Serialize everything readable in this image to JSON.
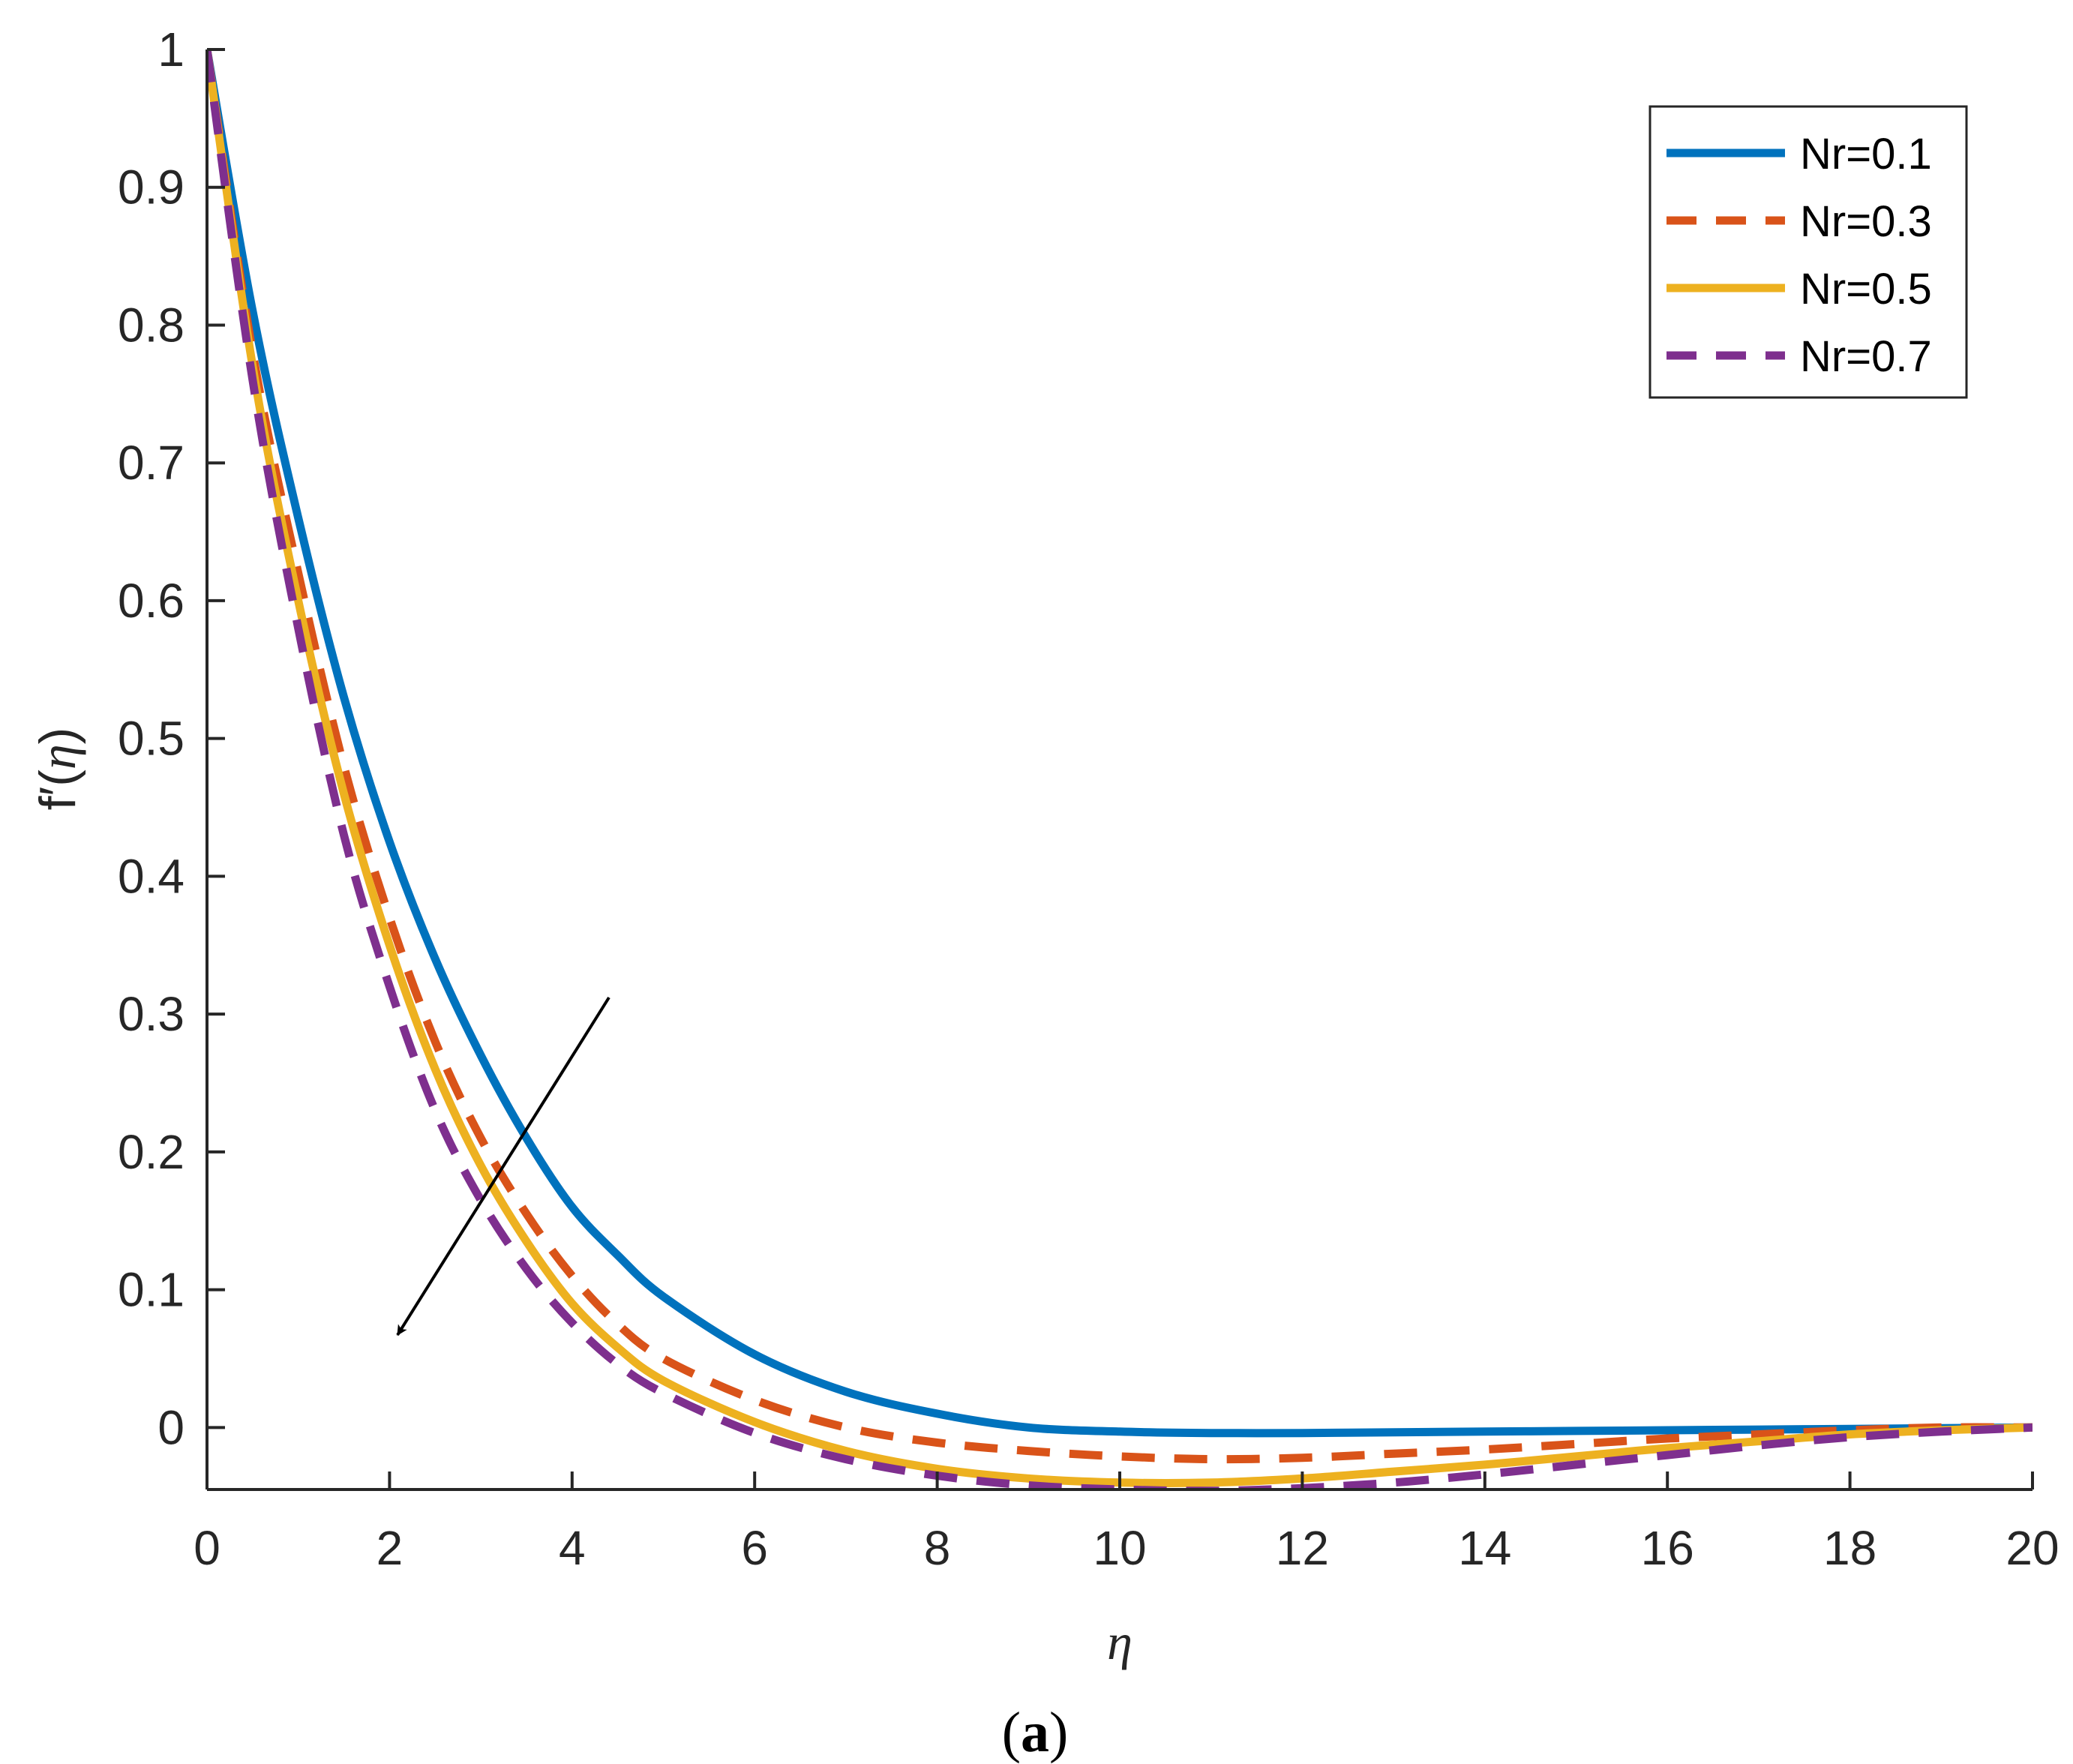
{
  "chart_data": {
    "type": "line",
    "title": "",
    "xlabel": "η",
    "ylabel_prefix": "f′(",
    "ylabel_var": "η",
    "ylabel_suffix": ")",
    "caption_open": "(",
    "caption_letter": "a",
    "caption_close": ")",
    "xlim": [
      0,
      20
    ],
    "ylim": [
      -0.045,
      1
    ],
    "xticks": [
      0,
      2,
      4,
      6,
      8,
      10,
      12,
      14,
      16,
      18,
      20
    ],
    "yticks": [
      0,
      0.1,
      0.2,
      0.3,
      0.4,
      0.5,
      0.6,
      0.7,
      0.8,
      0.9,
      1
    ],
    "ytick_labels": [
      "0",
      "0.1",
      "0.2",
      "0.3",
      "0.4",
      "0.5",
      "0.6",
      "0.7",
      "0.8",
      "0.9",
      "1"
    ],
    "xtick_labels": [
      "0",
      "2",
      "4",
      "6",
      "8",
      "10",
      "12",
      "14",
      "16",
      "18",
      "20"
    ],
    "grid": false,
    "legend_position": "top-right",
    "annotation": {
      "type": "arrow",
      "from": [
        4.4,
        0.31
      ],
      "to": [
        2.0,
        0.06
      ],
      "meaning": "increasing Nr"
    },
    "series": [
      {
        "name": "Nr=0.1",
        "color": "#0072BD",
        "style": "solid",
        "x": [
          0,
          0.5,
          1,
          1.5,
          2,
          2.5,
          3,
          3.5,
          4,
          4.5,
          5,
          6,
          7,
          8,
          9,
          10,
          11,
          12,
          13,
          14,
          15,
          16,
          17,
          18,
          19,
          20
        ],
        "y": [
          1,
          0.81,
          0.66,
          0.53,
          0.425,
          0.34,
          0.27,
          0.21,
          0.16,
          0.125,
          0.095,
          0.053,
          0.026,
          0.01,
          0.0,
          -0.003,
          -0.004,
          -0.004,
          -0.0035,
          -0.003,
          -0.0025,
          -0.002,
          -0.0015,
          -0.001,
          -0.0005,
          0
        ]
      },
      {
        "name": "Nr=0.3",
        "color": "#D95319",
        "style": "dashed",
        "x": [
          0,
          0.5,
          1,
          1.5,
          2,
          2.5,
          3,
          3.5,
          4,
          4.5,
          5,
          6,
          7,
          8,
          9,
          10,
          11,
          12,
          13,
          14,
          15,
          16,
          17,
          18,
          19,
          20
        ],
        "y": [
          1,
          0.78,
          0.62,
          0.48,
          0.37,
          0.28,
          0.21,
          0.155,
          0.11,
          0.075,
          0.05,
          0.02,
          0.0,
          -0.011,
          -0.017,
          -0.021,
          -0.023,
          -0.022,
          -0.019,
          -0.016,
          -0.012,
          -0.008,
          -0.005,
          -0.002,
          0.0,
          0
        ]
      },
      {
        "name": "Nr=0.5",
        "color": "#EDB120",
        "style": "solid",
        "x": [
          0,
          0.5,
          1,
          1.5,
          2,
          2.5,
          3,
          3.5,
          4,
          4.5,
          5,
          6,
          7,
          8,
          9,
          10,
          11,
          12,
          13,
          14,
          15,
          16,
          17,
          18,
          19,
          20
        ],
        "y": [
          1,
          0.77,
          0.6,
          0.46,
          0.35,
          0.26,
          0.19,
          0.135,
          0.09,
          0.058,
          0.034,
          0.004,
          -0.017,
          -0.03,
          -0.037,
          -0.04,
          -0.04,
          -0.037,
          -0.032,
          -0.027,
          -0.021,
          -0.015,
          -0.01,
          -0.005,
          -0.002,
          0
        ]
      },
      {
        "name": "Nr=0.7",
        "color": "#7E2F8E",
        "style": "dashed",
        "x": [
          0,
          0.5,
          1,
          1.5,
          2,
          2.5,
          3,
          3.5,
          4,
          4.5,
          5,
          6,
          7,
          8,
          9,
          10,
          11,
          12,
          13,
          14,
          15,
          16,
          17,
          18,
          19,
          20
        ],
        "y": [
          1,
          0.76,
          0.58,
          0.43,
          0.32,
          0.23,
          0.165,
          0.115,
          0.076,
          0.046,
          0.025,
          -0.004,
          -0.023,
          -0.035,
          -0.042,
          -0.045,
          -0.046,
          -0.044,
          -0.04,
          -0.034,
          -0.027,
          -0.02,
          -0.013,
          -0.007,
          -0.003,
          0
        ]
      }
    ]
  }
}
